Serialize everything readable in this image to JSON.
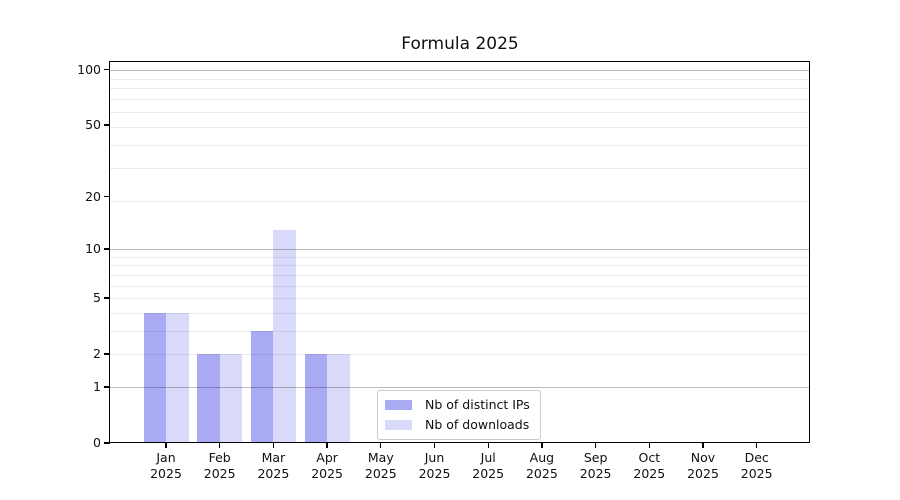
{
  "chart_data": {
    "type": "bar",
    "title": "Formula 2025",
    "x_ticks": [
      {
        "month": "Jan",
        "year": "2025"
      },
      {
        "month": "Feb",
        "year": "2025"
      },
      {
        "month": "Mar",
        "year": "2025"
      },
      {
        "month": "Apr",
        "year": "2025"
      },
      {
        "month": "May",
        "year": "2025"
      },
      {
        "month": "Jun",
        "year": "2025"
      },
      {
        "month": "Jul",
        "year": "2025"
      },
      {
        "month": "Aug",
        "year": "2025"
      },
      {
        "month": "Sep",
        "year": "2025"
      },
      {
        "month": "Oct",
        "year": "2025"
      },
      {
        "month": "Nov",
        "year": "2025"
      },
      {
        "month": "Dec",
        "year": "2025"
      }
    ],
    "series": [
      {
        "name": "Nb of distinct IPs",
        "color": "#a9a9f4",
        "values": [
          4,
          2,
          3,
          2,
          0,
          0,
          0,
          0,
          0,
          0,
          0,
          0
        ]
      },
      {
        "name": "Nb of downloads",
        "color": "#d9d9f9",
        "values": [
          4,
          2,
          13,
          2,
          0,
          0,
          0,
          0,
          0,
          0,
          0,
          0
        ]
      }
    ],
    "xlabel": "",
    "ylabel": "",
    "yscale": "log10(1+v)",
    "ylim": [
      0,
      110
    ],
    "yticks": [
      0,
      1,
      2,
      5,
      10,
      20,
      50,
      100
    ],
    "grid_major_values": [
      1,
      10,
      100
    ],
    "grid_minor_values": [
      2,
      3,
      4,
      5,
      6,
      7,
      8,
      9,
      19,
      29,
      39,
      49,
      59,
      69,
      79,
      89
    ],
    "grid": "on",
    "legend_position": "lower center"
  }
}
